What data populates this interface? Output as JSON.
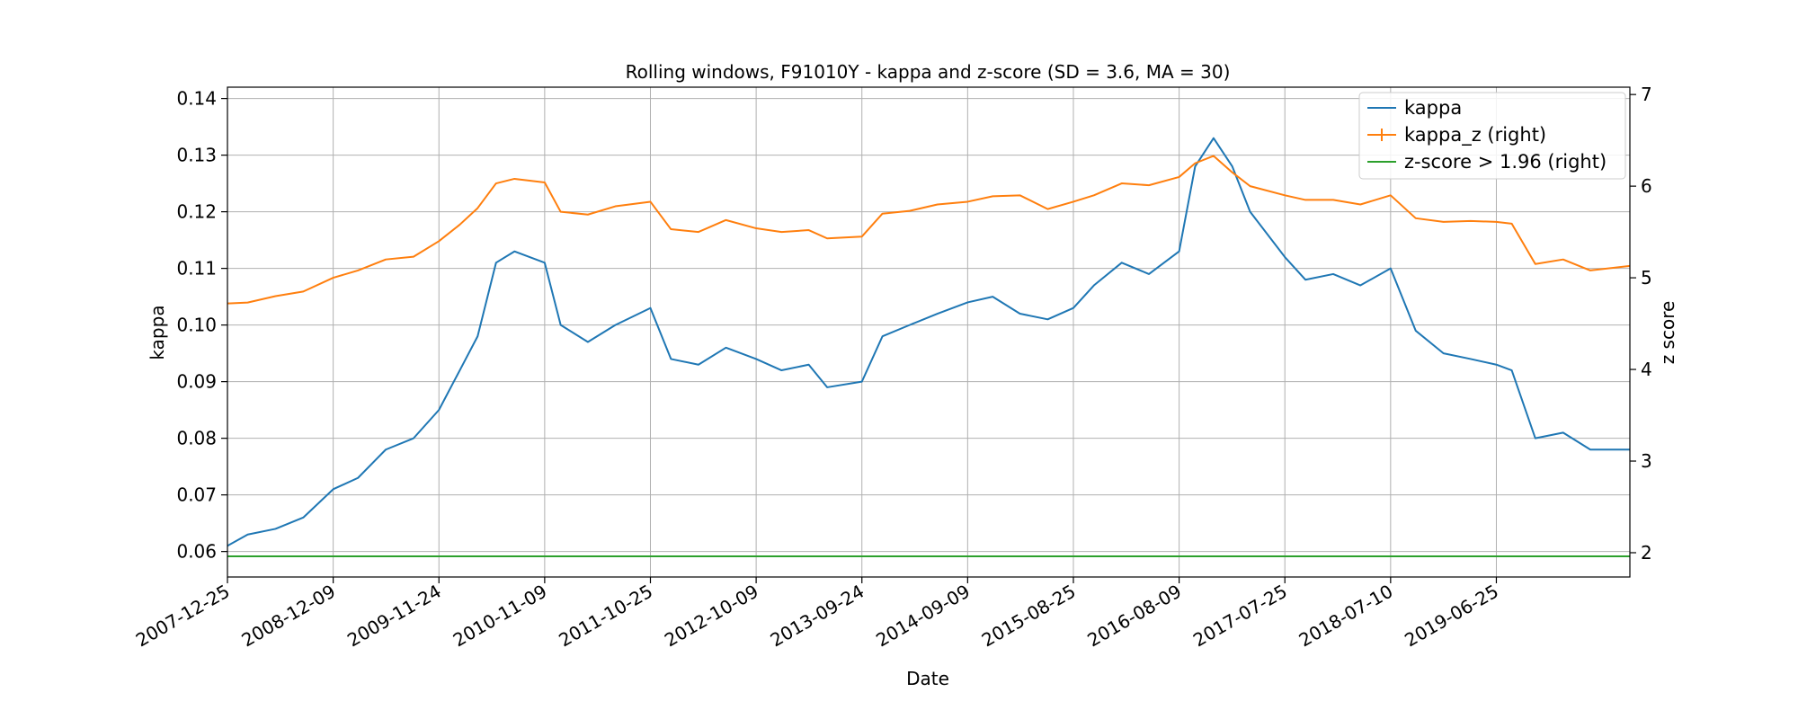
{
  "chart_data": {
    "type": "line",
    "title": "Rolling windows, F91010Y - kappa and z-score (SD = 3.6, MA = 30)",
    "xlabel": "Date",
    "ylabel_left": "kappa",
    "ylabel_right": "z score",
    "xlim": [
      "2007-12-25",
      "2020-09-09"
    ],
    "ylim_left": [
      0.0555,
      0.142
    ],
    "ylim_right": [
      1.735,
      7.08
    ],
    "x_ticks": [
      "2007-12-25",
      "2008-12-09",
      "2009-11-24",
      "2010-11-09",
      "2011-10-25",
      "2012-10-09",
      "2013-09-24",
      "2014-09-09",
      "2015-08-25",
      "2016-08-09",
      "2017-07-25",
      "2018-07-10",
      "2019-06-25"
    ],
    "y_ticks_left": [
      "0.06",
      "0.07",
      "0.08",
      "0.09",
      "0.10",
      "0.11",
      "0.12",
      "0.13",
      "0.14"
    ],
    "y_ticks_right": [
      "2",
      "3",
      "4",
      "5",
      "6",
      "7"
    ],
    "grid": true,
    "legend_position": "top-right",
    "series": [
      {
        "name": "kappa",
        "axis": "left",
        "color": "#1f77b4",
        "x": [
          "2007-12-25",
          "2008-03-01",
          "2008-06-01",
          "2008-09-01",
          "2008-12-09",
          "2009-03-01",
          "2009-06-01",
          "2009-09-01",
          "2009-11-24",
          "2010-02-01",
          "2010-04-01",
          "2010-06-01",
          "2010-08-01",
          "2010-11-09",
          "2011-01-01",
          "2011-04-01",
          "2011-07-01",
          "2011-10-25",
          "2012-01-01",
          "2012-04-01",
          "2012-07-01",
          "2012-10-09",
          "2013-01-01",
          "2013-04-01",
          "2013-06-01",
          "2013-09-24",
          "2013-12-01",
          "2014-03-01",
          "2014-06-01",
          "2014-09-09",
          "2014-12-01",
          "2015-03-01",
          "2015-06-01",
          "2015-08-25",
          "2015-11-01",
          "2016-02-01",
          "2016-05-01",
          "2016-08-09",
          "2016-10-01",
          "2016-12-01",
          "2017-02-01",
          "2017-04-01",
          "2017-07-25",
          "2017-10-01",
          "2018-01-01",
          "2018-04-01",
          "2018-07-10",
          "2018-10-01",
          "2019-01-01",
          "2019-04-01",
          "2019-06-25",
          "2019-08-15",
          "2019-11-01",
          "2020-02-01",
          "2020-05-01",
          "2020-09-09"
        ],
        "y": [
          0.061,
          0.063,
          0.064,
          0.066,
          0.071,
          0.073,
          0.078,
          0.08,
          0.085,
          0.092,
          0.098,
          0.111,
          0.113,
          0.111,
          0.1,
          0.097,
          0.1,
          0.103,
          0.094,
          0.093,
          0.096,
          0.094,
          0.092,
          0.093,
          0.089,
          0.09,
          0.098,
          0.1,
          0.102,
          0.104,
          0.105,
          0.102,
          0.101,
          0.103,
          0.107,
          0.111,
          0.109,
          0.113,
          0.128,
          0.133,
          0.128,
          0.12,
          0.112,
          0.108,
          0.109,
          0.107,
          0.11,
          0.099,
          0.095,
          0.094,
          0.093,
          0.092,
          0.08,
          0.081,
          0.078,
          0.078
        ]
      },
      {
        "name": "kappa_z (right)",
        "axis": "right",
        "color": "#ff7f0e",
        "x": [
          "2007-12-25",
          "2008-03-01",
          "2008-06-01",
          "2008-09-01",
          "2008-12-09",
          "2009-03-01",
          "2009-06-01",
          "2009-09-01",
          "2009-11-24",
          "2010-02-01",
          "2010-04-01",
          "2010-06-01",
          "2010-08-01",
          "2010-11-09",
          "2011-01-01",
          "2011-04-01",
          "2011-07-01",
          "2011-10-25",
          "2012-01-01",
          "2012-04-01",
          "2012-07-01",
          "2012-10-09",
          "2013-01-01",
          "2013-04-01",
          "2013-06-01",
          "2013-09-24",
          "2013-12-01",
          "2014-03-01",
          "2014-06-01",
          "2014-09-09",
          "2014-12-01",
          "2015-03-01",
          "2015-06-01",
          "2015-08-25",
          "2015-11-01",
          "2016-02-01",
          "2016-05-01",
          "2016-08-09",
          "2016-10-01",
          "2016-12-01",
          "2017-02-01",
          "2017-04-01",
          "2017-07-25",
          "2017-10-01",
          "2018-01-01",
          "2018-04-01",
          "2018-07-10",
          "2018-10-01",
          "2019-01-01",
          "2019-04-01",
          "2019-06-25",
          "2019-08-15",
          "2019-11-01",
          "2020-02-01",
          "2020-05-01",
          "2020-09-09"
        ],
        "y": [
          4.72,
          4.73,
          4.8,
          4.85,
          5.0,
          5.08,
          5.2,
          5.23,
          5.4,
          5.58,
          5.76,
          6.03,
          6.08,
          6.04,
          5.72,
          5.69,
          5.78,
          5.83,
          5.53,
          5.5,
          5.63,
          5.54,
          5.5,
          5.52,
          5.43,
          5.45,
          5.7,
          5.73,
          5.8,
          5.83,
          5.89,
          5.9,
          5.75,
          5.83,
          5.9,
          6.03,
          6.01,
          6.1,
          6.25,
          6.33,
          6.15,
          6.0,
          5.9,
          5.85,
          5.85,
          5.8,
          5.9,
          5.65,
          5.61,
          5.62,
          5.61,
          5.59,
          5.15,
          5.2,
          5.08,
          5.13
        ]
      },
      {
        "name": "z-score > 1.96 (right)",
        "axis": "right",
        "color": "#2ca02c",
        "x": [
          "2007-12-25",
          "2020-09-09"
        ],
        "y": [
          1.96,
          1.96
        ]
      }
    ]
  }
}
